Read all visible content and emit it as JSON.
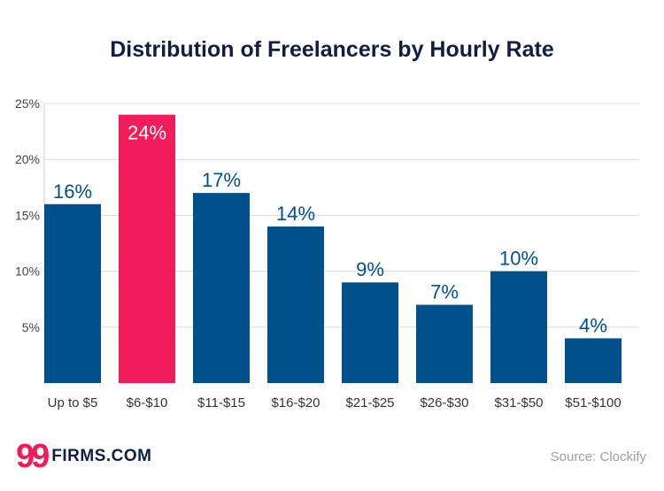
{
  "chart_data": {
    "type": "bar",
    "title": "Distribution of Freelancers by Hourly Rate",
    "xlabel": "",
    "ylabel": "",
    "categories": [
      "Up to $5",
      "$6-$10",
      "$11-$15",
      "$16-$20",
      "$21-$25",
      "$26-$30",
      "$31-$50",
      "$51-$100"
    ],
    "values": [
      16,
      24,
      17,
      14,
      9,
      7,
      10,
      4
    ],
    "data_labels": [
      "16%",
      "24%",
      "17%",
      "14%",
      "9%",
      "7%",
      "10%",
      "4%"
    ],
    "highlight_index": 1,
    "ylim": [
      0,
      25
    ],
    "yticks": [
      5,
      10,
      15,
      20,
      25
    ],
    "ytick_labels": [
      "5%",
      "10%",
      "15%",
      "20%",
      "25%"
    ],
    "grid": true,
    "colors": {
      "bar": "#00508c",
      "highlight": "#f21c5a",
      "label": "#00508c",
      "highlight_label": "#ffffff"
    }
  },
  "logo": {
    "mark": "99",
    "text": "FIRMS.COM"
  },
  "source": "Source: Clockify"
}
